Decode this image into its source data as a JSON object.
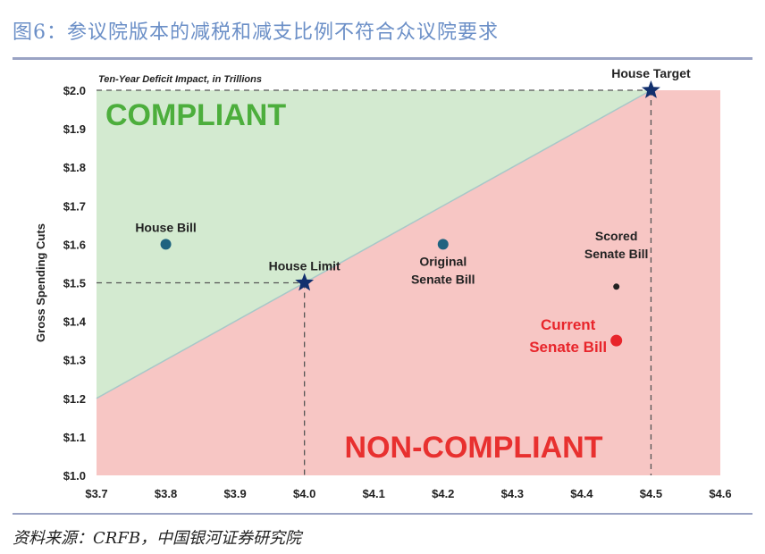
{
  "figure_title": "图6：参议院版本的减税和减支比例不符合众议院要求",
  "source": "资料来源：CRFB，中国银河证券研究院",
  "colors": {
    "compliant_fill": "#d3ead0",
    "noncompliant_fill": "#f7c6c4",
    "point_blue": "#1f6380",
    "point_red": "#e8252b",
    "point_black": "#222222",
    "star": "#12306e",
    "dash": "#555555",
    "title_blue": "#6b8fc7"
  },
  "chart_data": {
    "type": "scatter",
    "subtitle": "Ten-Year Deficit Impact, in Trillions",
    "ylabel": "Gross Spending Cuts",
    "xlabel": "",
    "xlim": [
      3.7,
      4.6
    ],
    "ylim": [
      1.0,
      2.0
    ],
    "x_ticks": [
      "$3.7",
      "$3.8",
      "$3.9",
      "$4.0",
      "$4.1",
      "$4.2",
      "$4.3",
      "$4.4",
      "$4.5",
      "$4.6"
    ],
    "y_ticks": [
      "$1.0",
      "$1.1",
      "$1.2",
      "$1.3",
      "$1.4",
      "$1.5",
      "$1.6",
      "$1.7",
      "$1.8",
      "$1.9",
      "$2.0"
    ],
    "grid": false,
    "regions": [
      {
        "label": "COMPLIANT",
        "color": "green"
      },
      {
        "label": "NON-COMPLIANT",
        "color": "red"
      }
    ],
    "boundary_line": [
      [
        3.7,
        1.2
      ],
      [
        4.5,
        2.0
      ]
    ],
    "points": [
      {
        "label": [
          "House Bill"
        ],
        "x": 3.8,
        "y": 1.6,
        "marker": "circle",
        "color": "blue",
        "label_pos": "above"
      },
      {
        "label": [
          "House Limit"
        ],
        "x": 4.0,
        "y": 1.5,
        "marker": "star",
        "color": "star",
        "label_pos": "above"
      },
      {
        "label": [
          "Original",
          "Senate Bill"
        ],
        "x": 4.2,
        "y": 1.6,
        "marker": "circle",
        "color": "blue",
        "label_pos": "below"
      },
      {
        "label": [
          "Scored",
          "Senate Bill"
        ],
        "x": 4.45,
        "y": 1.49,
        "marker": "dot",
        "color": "black",
        "label_pos": "above"
      },
      {
        "label": [
          "Current",
          "Senate Bill"
        ],
        "x": 4.45,
        "y": 1.35,
        "marker": "circle",
        "color": "red",
        "label_pos": "left"
      },
      {
        "label": [
          "House Target"
        ],
        "x": 4.5,
        "y": 2.0,
        "marker": "star",
        "color": "star",
        "label_pos": "above"
      }
    ]
  }
}
